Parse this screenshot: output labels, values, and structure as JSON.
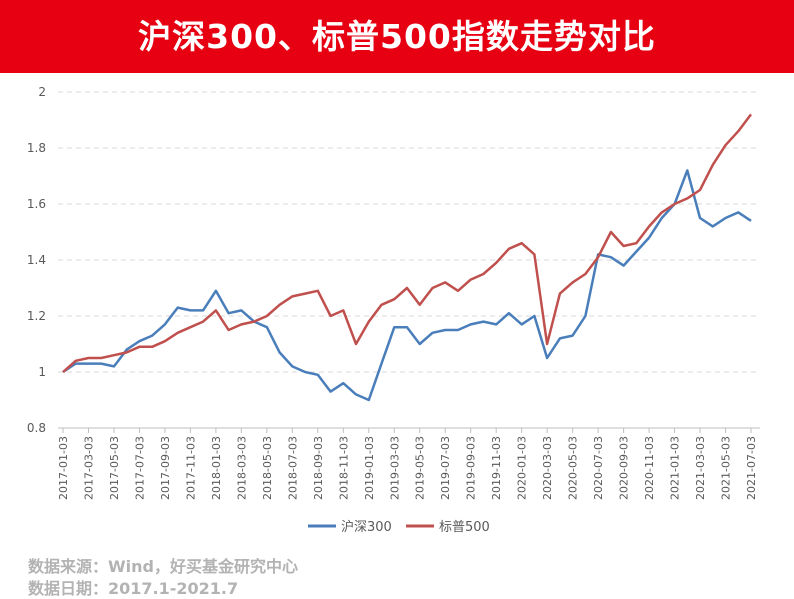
{
  "header": {
    "title": "沪深300、标普500指数走势对比"
  },
  "footer": {
    "source": "数据来源：Wind，好买基金研究中心",
    "period": "数据日期：2017.1-2021.7"
  },
  "colors": {
    "banner": "#e60012",
    "series_hs300": "#4a7ebb",
    "series_sp500": "#c0504d"
  },
  "chart_data": {
    "type": "line",
    "title": "",
    "xlabel": "",
    "ylabel": "",
    "ylim": [
      0.8,
      2.0
    ],
    "yticks": [
      0.8,
      1,
      1.2,
      1.4,
      1.6,
      1.8,
      2
    ],
    "grid": "horizontal-dashed",
    "legend": "bottom-center",
    "x_ticks": [
      "2017-01-03",
      "2017-03-03",
      "2017-05-03",
      "2017-07-03",
      "2017-09-03",
      "2017-11-03",
      "2018-01-03",
      "2018-03-03",
      "2018-05-03",
      "2018-07-03",
      "2018-09-03",
      "2018-11-03",
      "2019-01-03",
      "2019-03-03",
      "2019-05-03",
      "2019-07-03",
      "2019-09-03",
      "2019-11-03",
      "2020-01-03",
      "2020-03-03",
      "2020-05-03",
      "2020-07-03",
      "2020-09-03",
      "2020-11-03",
      "2021-01-03",
      "2021-03-03",
      "2021-05-03",
      "2021-07-03"
    ],
    "x": [
      "2017-01",
      "2017-02",
      "2017-03",
      "2017-04",
      "2017-05",
      "2017-06",
      "2017-07",
      "2017-08",
      "2017-09",
      "2017-10",
      "2017-11",
      "2017-12",
      "2018-01",
      "2018-02",
      "2018-03",
      "2018-04",
      "2018-05",
      "2018-06",
      "2018-07",
      "2018-08",
      "2018-09",
      "2018-10",
      "2018-11",
      "2018-12",
      "2019-01",
      "2019-02",
      "2019-03",
      "2019-04",
      "2019-05",
      "2019-06",
      "2019-07",
      "2019-08",
      "2019-09",
      "2019-10",
      "2019-11",
      "2019-12",
      "2020-01",
      "2020-02",
      "2020-03",
      "2020-04",
      "2020-05",
      "2020-06",
      "2020-07",
      "2020-08",
      "2020-09",
      "2020-10",
      "2020-11",
      "2020-12",
      "2021-01",
      "2021-02",
      "2021-03",
      "2021-04",
      "2021-05",
      "2021-06",
      "2021-07"
    ],
    "series": [
      {
        "name": "沪深300",
        "values": [
          1.0,
          1.03,
          1.03,
          1.03,
          1.02,
          1.08,
          1.11,
          1.13,
          1.17,
          1.23,
          1.22,
          1.22,
          1.29,
          1.21,
          1.22,
          1.18,
          1.16,
          1.07,
          1.02,
          1.0,
          0.99,
          0.93,
          0.96,
          0.92,
          0.9,
          1.03,
          1.16,
          1.16,
          1.1,
          1.14,
          1.15,
          1.15,
          1.17,
          1.18,
          1.17,
          1.21,
          1.17,
          1.2,
          1.05,
          1.12,
          1.13,
          1.2,
          1.42,
          1.41,
          1.38,
          1.43,
          1.48,
          1.55,
          1.6,
          1.72,
          1.55,
          1.52,
          1.55,
          1.57,
          1.54
        ]
      },
      {
        "name": "标普500",
        "values": [
          1.0,
          1.04,
          1.05,
          1.05,
          1.06,
          1.07,
          1.09,
          1.09,
          1.11,
          1.14,
          1.16,
          1.18,
          1.22,
          1.15,
          1.17,
          1.18,
          1.2,
          1.24,
          1.27,
          1.28,
          1.29,
          1.2,
          1.22,
          1.1,
          1.18,
          1.24,
          1.26,
          1.3,
          1.24,
          1.3,
          1.32,
          1.29,
          1.33,
          1.35,
          1.39,
          1.44,
          1.46,
          1.42,
          1.1,
          1.28,
          1.32,
          1.35,
          1.41,
          1.5,
          1.45,
          1.46,
          1.52,
          1.57,
          1.6,
          1.62,
          1.65,
          1.74,
          1.81,
          1.86,
          1.92
        ]
      }
    ]
  }
}
